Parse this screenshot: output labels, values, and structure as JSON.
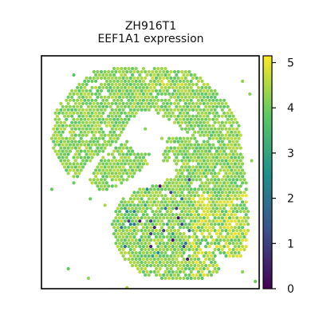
{
  "chart_data": {
    "type": "scatter",
    "title_line1": "ZH916T1",
    "title_line2": "EEF1A1 expression",
    "xlabel": "",
    "ylabel": "",
    "axis_ticks_visible": false,
    "grid": false,
    "legend": "none",
    "colorbar": {
      "position": "right",
      "colormap": "viridis",
      "range": [
        0,
        5.15
      ],
      "ticks": [
        0,
        1,
        2,
        3,
        4,
        5
      ],
      "tick_labels": [
        "0",
        "1",
        "2",
        "3",
        "4",
        "5"
      ]
    },
    "colormap_stops": [
      "#440154",
      "#3b528b",
      "#21918c",
      "#5ec962",
      "#fde725"
    ],
    "value_summary": {
      "typical": 4.2,
      "high_hotspot": 4.9,
      "low_spots": [
        0.2,
        0.5,
        1.0,
        2.0,
        2.5,
        3.0,
        3.2
      ]
    },
    "region_values": [
      {
        "region": "top-band",
        "mean": 4.3
      },
      {
        "region": "left-lobe",
        "mean": 4.1
      },
      {
        "region": "right-lobe",
        "mean": 4.2
      },
      {
        "region": "lower-island",
        "mean": 3.9
      },
      {
        "region": "lower-right-hotspot",
        "mean": 4.8
      }
    ]
  }
}
